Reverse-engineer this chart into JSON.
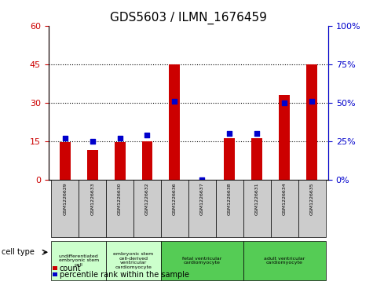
{
  "title": "GDS5603 / ILMN_1676459",
  "samples": [
    "GSM1226629",
    "GSM1226633",
    "GSM1226630",
    "GSM1226632",
    "GSM1226636",
    "GSM1226637",
    "GSM1226638",
    "GSM1226631",
    "GSM1226634",
    "GSM1226635"
  ],
  "counts": [
    14.5,
    11.5,
    14.5,
    15.0,
    45.0,
    0.0,
    16.0,
    16.0,
    33.0,
    45.0
  ],
  "percentiles": [
    27,
    25,
    27,
    29,
    51,
    0,
    30,
    30,
    50,
    51
  ],
  "ylim_left": [
    0,
    60
  ],
  "ylim_right": [
    0,
    100
  ],
  "yticks_left": [
    0,
    15,
    30,
    45,
    60
  ],
  "yticks_right": [
    0,
    25,
    50,
    75,
    100
  ],
  "ytick_labels_left": [
    "0",
    "15",
    "30",
    "45",
    "60"
  ],
  "ytick_labels_right": [
    "0%",
    "25%",
    "50%",
    "75%",
    "100%"
  ],
  "bar_color": "#cc0000",
  "dot_color": "#0000cc",
  "cell_types": [
    {
      "label": "undifferentiated\nembryonic stem\ncell",
      "indices": [
        0,
        1
      ],
      "color": "#ccffcc"
    },
    {
      "label": "embryonic stem\ncell-derived\nventricular\ncardiomyocyte",
      "indices": [
        2,
        3
      ],
      "color": "#ccffcc"
    },
    {
      "label": "fetal ventricular\ncardiomyocyte",
      "indices": [
        4,
        5,
        6
      ],
      "color": "#55cc55"
    },
    {
      "label": "adult ventricular\ncardiomyocyte",
      "indices": [
        7,
        8,
        9
      ],
      "color": "#55cc55"
    }
  ],
  "cell_type_label": "cell type",
  "legend_count_label": "count",
  "legend_percentile_label": "percentile rank within the sample",
  "background_color": "#ffffff",
  "plot_bg_color": "#ffffff",
  "sample_bg_color": "#cccccc",
  "tick_label_color_left": "#cc0000",
  "tick_label_color_right": "#0000cc"
}
